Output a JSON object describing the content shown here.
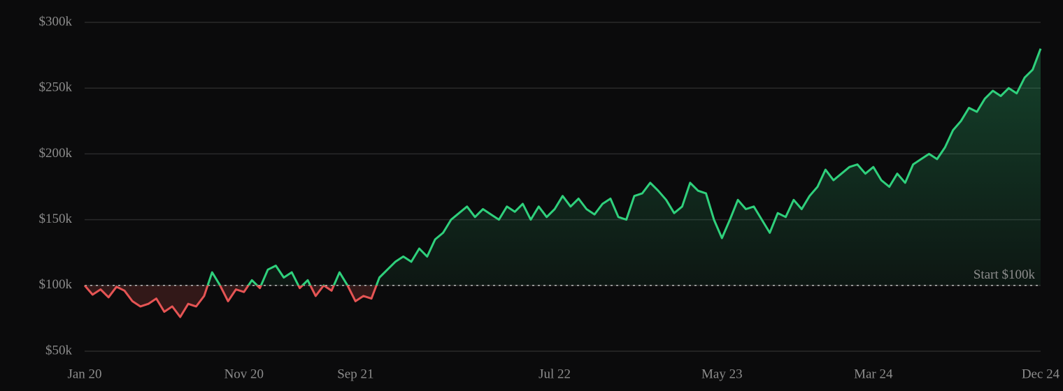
{
  "chart_data": {
    "type": "line",
    "categories": [
      "Jan 20",
      null,
      null,
      null,
      null,
      null,
      null,
      null,
      null,
      null,
      null,
      null,
      null,
      null,
      null,
      null,
      null,
      null,
      null,
      null,
      "Nov 20",
      null,
      null,
      null,
      null,
      null,
      null,
      null,
      null,
      null,
      null,
      null,
      null,
      null,
      "Sep 21",
      null,
      null,
      null,
      null,
      null,
      null,
      null,
      null,
      null,
      null,
      null,
      null,
      null,
      null,
      null,
      null,
      null,
      null,
      null,
      null,
      null,
      null,
      null,
      null,
      "Jul 22",
      null,
      null,
      null,
      null,
      null,
      null,
      null,
      null,
      null,
      null,
      null,
      null,
      null,
      null,
      null,
      null,
      null,
      null,
      null,
      null,
      "May 23",
      null,
      null,
      null,
      null,
      null,
      null,
      null,
      null,
      null,
      null,
      null,
      null,
      null,
      null,
      null,
      null,
      null,
      null,
      "Mar 24",
      null,
      null,
      null,
      null,
      null,
      null,
      null,
      null,
      null,
      null,
      null,
      null,
      null,
      null,
      null,
      null,
      null,
      null,
      null,
      null,
      "Dec 24"
    ],
    "values": [
      100,
      93,
      97,
      91,
      99,
      96,
      88,
      84,
      86,
      90,
      80,
      84,
      76,
      86,
      84,
      92,
      110,
      100,
      88,
      97,
      95,
      104,
      98,
      112,
      115,
      106,
      110,
      98,
      104,
      92,
      100,
      96,
      110,
      100,
      88,
      92,
      90,
      106,
      112,
      118,
      122,
      118,
      128,
      122,
      135,
      140,
      150,
      155,
      160,
      152,
      158,
      154,
      150,
      160,
      156,
      162,
      150,
      160,
      152,
      158,
      168,
      160,
      166,
      158,
      154,
      162,
      166,
      152,
      150,
      168,
      170,
      178,
      172,
      165,
      155,
      160,
      178,
      172,
      170,
      150,
      136,
      150,
      165,
      158,
      160,
      150,
      140,
      155,
      152,
      165,
      158,
      168,
      175,
      188,
      180,
      185,
      190,
      192,
      185,
      190,
      180,
      175,
      185,
      178,
      192,
      196,
      200,
      196,
      205,
      218,
      225,
      235,
      232,
      242,
      248,
      244,
      250,
      246,
      258,
      264,
      280
    ],
    "up_color": "#2fd07c",
    "down_color": "#e55454",
    "baseline": {
      "value": 100,
      "label": "Start $100k"
    },
    "ylim": [
      50,
      300
    ],
    "yticks": [
      {
        "value": 50,
        "label": "$50k"
      },
      {
        "value": 100,
        "label": "$100k"
      },
      {
        "value": 150,
        "label": "$150k"
      },
      {
        "value": 200,
        "label": "$200k"
      },
      {
        "value": 250,
        "label": "$250k"
      },
      {
        "value": 300,
        "label": "$300k"
      }
    ],
    "grid": true
  }
}
